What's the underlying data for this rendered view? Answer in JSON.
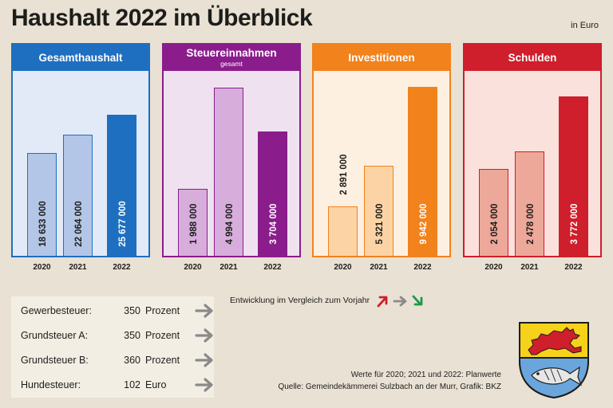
{
  "title": "Haushalt 2022 im Überblick",
  "unit": "in Euro",
  "chart_data": [
    {
      "type": "bar",
      "title": "Gesamthaushalt",
      "subtitle": "",
      "categories": [
        "2020",
        "2021",
        "2022"
      ],
      "values": [
        18633000,
        22064000,
        25677000
      ],
      "value_labels": [
        "18 633 000",
        "22 064 000",
        "25 677 000"
      ],
      "ylim": [
        0,
        33000000
      ],
      "colors": {
        "header": "#1e6fbf",
        "panel_bg": "#e3eaf7",
        "bars": [
          "#b3c6e7",
          "#b3c6e7",
          "#1e6fbf"
        ],
        "bar_border": "#1e6fbf",
        "label": [
          "#1d1d1b",
          "#1d1d1b",
          "#ffffff"
        ]
      }
    },
    {
      "type": "bar",
      "title": "Steuereinnahmen",
      "subtitle": "gesamt",
      "categories": [
        "2020",
        "2021",
        "2022"
      ],
      "values": [
        1988000,
        4994000,
        3704000
      ],
      "value_labels": [
        "1 988 000",
        "4 994 000",
        "3 704 000"
      ],
      "ylim": [
        0,
        5400000
      ],
      "colors": {
        "header": "#8a1d8b",
        "panel_bg": "#efe1f0",
        "bars": [
          "#d7addb",
          "#d7addb",
          "#8a1d8b"
        ],
        "bar_border": "#8a1d8b",
        "label": [
          "#1d1d1b",
          "#1d1d1b",
          "#ffffff"
        ]
      }
    },
    {
      "type": "bar",
      "title": "Investitionen",
      "subtitle": "",
      "categories": [
        "2020",
        "2021",
        "2022"
      ],
      "values": [
        2891000,
        5321000,
        9942000
      ],
      "value_labels": [
        "2 891 000",
        "5 321 000",
        "9 942 000"
      ],
      "ylim": [
        0,
        10700000
      ],
      "colors": {
        "header": "#f2821c",
        "panel_bg": "#fdf0e1",
        "bars": [
          "#fbd3a5",
          "#fbd3a5",
          "#f2821c"
        ],
        "bar_border": "#f2821c",
        "label": [
          "#1d1d1b",
          "#1d1d1b",
          "#ffffff"
        ]
      }
    },
    {
      "type": "bar",
      "title": "Schulden",
      "subtitle": "",
      "categories": [
        "2020",
        "2021",
        "2022"
      ],
      "values": [
        2054000,
        2478000,
        3772000
      ],
      "value_labels": [
        "2 054 000",
        "2 478 000",
        "3 772 000"
      ],
      "ylim": [
        0,
        4300000
      ],
      "colors": {
        "header": "#cf1e2c",
        "panel_bg": "#fbe1dc",
        "bars": [
          "#eda899",
          "#eda899",
          "#cf1e2c"
        ],
        "bar_border": "#cf1e2c",
        "label": [
          "#1d1d1b",
          "#1d1d1b",
          "#ffffff"
        ]
      }
    }
  ],
  "taxes": [
    {
      "name": "Gewerbesteuer:",
      "value": "350",
      "unit": "Prozent",
      "trend": "gleich"
    },
    {
      "name": "Grundsteuer A:",
      "value": "350",
      "unit": "Prozent",
      "trend": "gleich"
    },
    {
      "name": "Grundsteuer B:",
      "value": "360",
      "unit": "Prozent",
      "trend": "gleich"
    },
    {
      "name": "Hundesteuer:",
      "value": "102",
      "unit": "Euro",
      "trend": "gleich"
    }
  ],
  "legend": {
    "text": "Entwicklung im Vergleich zum Vorjahr",
    "icons": [
      "arrow-up-icon",
      "arrow-right-icon",
      "arrow-down-icon"
    ],
    "colors": {
      "up": "#cf1e2c",
      "same": "#8a8a8a",
      "down": "#1a9a4a"
    }
  },
  "notes": {
    "line1": "Werte für 2020; 2021 und 2022: Planwerte",
    "line2": "Quelle: Gemeindekämmerei Sulzbach an der Murr, Grafik: BKZ"
  },
  "crest": {
    "icon": "coat-of-arms-icon",
    "colors": {
      "gold": "#f7d21a",
      "red": "#cf1e2c",
      "blue": "#6aa6dc"
    }
  }
}
